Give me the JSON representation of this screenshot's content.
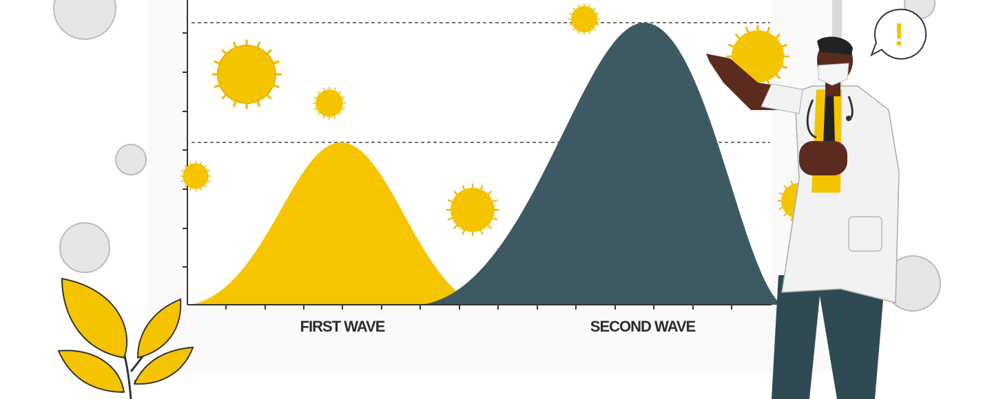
{
  "labels": {
    "first_wave": "FIRST WAVE",
    "second_wave": "SECOND WAVE"
  },
  "speech_bubble": "!"
}
